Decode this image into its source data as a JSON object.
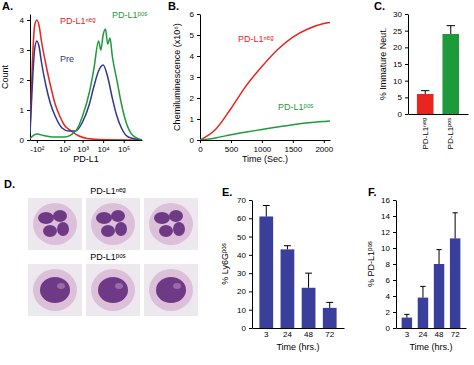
{
  "chart_data": [
    {
      "type": "line",
      "title": "A.",
      "x_label": "PD-L1",
      "y_label": "Count",
      "xlim": [
        0,
        4.9
      ],
      "xticks": [
        {
          "value": 0.3,
          "label": "-10²"
        },
        {
          "value": 1.5,
          "label": "10²"
        },
        {
          "value": 2.3,
          "label": "10³"
        },
        {
          "value": 3.2,
          "label": "10⁴"
        },
        {
          "value": 4.1,
          "label": "10⁵"
        }
      ],
      "ylim": [
        0,
        4.2
      ],
      "yticks": [
        0,
        1,
        2,
        3,
        4
      ],
      "series": [
        {
          "name": "PD-L1ⁿᵉᵍ",
          "color": "#e8251f",
          "x": [
            0,
            0.1,
            0.2,
            0.3,
            0.4,
            0.5,
            0.7,
            0.9,
            1.1,
            1.3,
            1.5,
            1.8,
            2.1,
            2.5,
            3,
            4.9
          ],
          "values": [
            0.3,
            2.5,
            3.8,
            4.0,
            3.8,
            3.3,
            2.5,
            1.8,
            1.2,
            0.8,
            0.5,
            0.3,
            0.15,
            0.05,
            0.02,
            0
          ]
        },
        {
          "name": "Pre",
          "color": "#2b3a8f",
          "x": [
            0,
            0.1,
            0.2,
            0.3,
            0.4,
            0.5,
            0.7,
            0.9,
            1.1,
            1.4,
            1.7,
            2.0,
            2.3,
            2.6,
            2.8,
            3.0,
            3.2,
            3.4,
            3.6,
            3.8,
            4.0,
            4.3,
            4.9
          ],
          "values": [
            0.2,
            1.8,
            3.0,
            3.3,
            3.1,
            2.6,
            1.8,
            1.2,
            0.8,
            0.4,
            0.3,
            0.3,
            0.6,
            1.2,
            1.8,
            2.3,
            2.5,
            2.1,
            1.4,
            0.8,
            0.4,
            0.1,
            0
          ]
        },
        {
          "name": "PD-L1ᵖᵒˢ",
          "color": "#1f9a3b",
          "x": [
            0,
            0.3,
            0.6,
            1.0,
            1.5,
            2.0,
            2.3,
            2.6,
            2.8,
            3.0,
            3.1,
            3.2,
            3.3,
            3.4,
            3.5,
            3.6,
            3.8,
            4.0,
            4.2,
            4.5,
            4.9
          ],
          "values": [
            0.05,
            0.2,
            0.15,
            0.1,
            0.1,
            0.3,
            0.8,
            1.6,
            2.4,
            3.3,
            3.0,
            3.5,
            3.7,
            3.2,
            3.4,
            2.8,
            2.0,
            1.2,
            0.6,
            0.15,
            0
          ]
        }
      ]
    },
    {
      "type": "line",
      "title": "B.",
      "x_label": "Time (Sec.)",
      "y_label": "Chemiluminescence (x10⁶)",
      "x": [
        0,
        250,
        500,
        750,
        1000,
        1250,
        1500,
        1750,
        2000,
        2100
      ],
      "xlim": [
        0,
        2100
      ],
      "xticks": [
        0,
        500,
        1000,
        1500,
        2000
      ],
      "ylim": [
        0,
        6
      ],
      "yticks": [
        0,
        1,
        2,
        3,
        4,
        5,
        6
      ],
      "series": [
        {
          "name": "PD-L1ⁿᵉᵍ",
          "color": "#e8251f",
          "values": [
            0,
            0.5,
            1.5,
            2.6,
            3.5,
            4.3,
            4.9,
            5.3,
            5.55,
            5.6
          ]
        },
        {
          "name": "PD-L1ᵖᵒˢ",
          "color": "#1f9a3b",
          "values": [
            0,
            0.1,
            0.25,
            0.38,
            0.5,
            0.62,
            0.73,
            0.82,
            0.88,
            0.9
          ]
        }
      ]
    },
    {
      "type": "bar",
      "title": "C.",
      "y_label": "% Immature Neut.",
      "categories": [
        "PD-L1ⁿᵉᵍ",
        "PD-L1ᵖᵒˢ"
      ],
      "values": [
        6,
        24
      ],
      "errors": [
        1,
        2.5
      ],
      "colors": [
        "#e8251f",
        "#1f9a3b"
      ],
      "ylim": [
        0,
        30
      ],
      "yticks": [
        0,
        5,
        10,
        15,
        20,
        25,
        30
      ]
    },
    {
      "type": "image",
      "title": "D.",
      "categories": [
        "PD-L1ⁿᵉᵍ",
        "PD-L1ᵖᵒˢ"
      ]
    },
    {
      "type": "bar",
      "title": "E.",
      "x_label": "Time (hrs.)",
      "y_label": "% Ly6Gᵖᵒˢ",
      "categories": [
        "3",
        "24",
        "48",
        "72"
      ],
      "values": [
        61,
        43,
        22,
        11
      ],
      "errors": [
        6,
        2,
        8,
        3
      ],
      "color": "#3a3f9c",
      "ylim": [
        0,
        70
      ],
      "yticks": [
        0,
        10,
        20,
        30,
        40,
        50,
        60,
        70
      ]
    },
    {
      "type": "bar",
      "title": "F.",
      "x_label": "Time (hrs.)",
      "y_label": "% PD-L1ᵖᵒˢ",
      "categories": [
        "3",
        "24",
        "48",
        "72"
      ],
      "values": [
        1.3,
        3.8,
        8,
        11.2
      ],
      "errors": [
        0.4,
        1.4,
        1.8,
        3.2
      ],
      "color": "#3a3f9c",
      "ylim": [
        0,
        16
      ],
      "yticks": [
        0,
        2,
        4,
        6,
        8,
        10,
        12,
        14,
        16
      ]
    }
  ]
}
